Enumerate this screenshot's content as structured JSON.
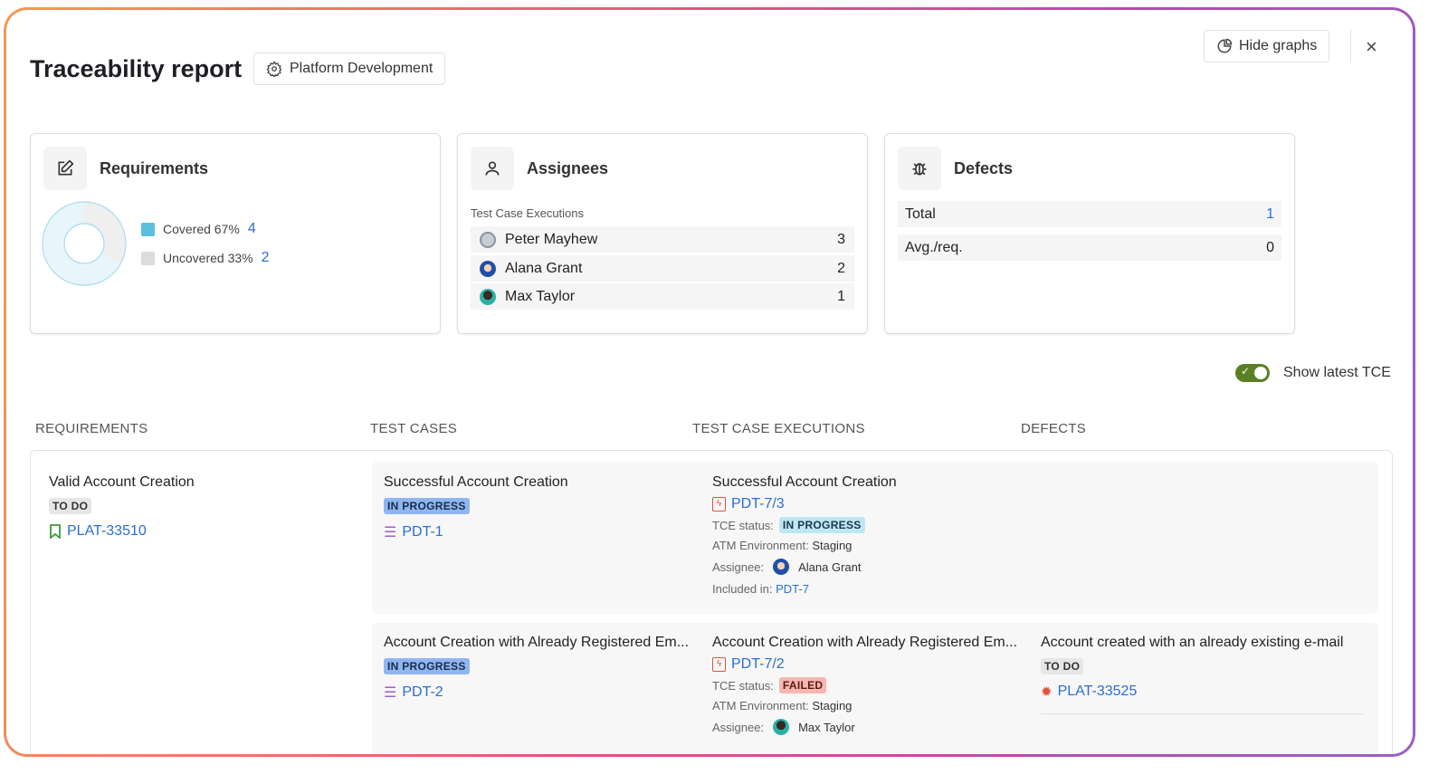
{
  "header": {
    "title": "Traceability report",
    "project": "Platform Development",
    "hide_graphs": "Hide graphs",
    "close": "×"
  },
  "requirements_card": {
    "title": "Requirements",
    "covered_label": "Covered 67%",
    "covered_count": "4",
    "uncovered_label": "Uncovered 33%",
    "uncovered_count": "2",
    "covered_pct": 67,
    "colors": {
      "covered": "#5bc0de",
      "uncovered": "#dcdcdc"
    }
  },
  "assignees_card": {
    "title": "Assignees",
    "subtitle": "Test Case Executions",
    "rows": [
      {
        "name": "Peter Mayhew",
        "count": "3"
      },
      {
        "name": "Alana Grant",
        "count": "2"
      },
      {
        "name": "Max Taylor",
        "count": "1"
      }
    ]
  },
  "defects_card": {
    "title": "Defects",
    "rows": [
      {
        "label": "Total",
        "value": "1"
      },
      {
        "label": "Avg./req.",
        "value": "0"
      }
    ]
  },
  "toggle": {
    "label": "Show latest TCE",
    "on": true,
    "check": "✓"
  },
  "columns": [
    "REQUIREMENTS",
    "TEST CASES",
    "TEST CASE EXECUTIONS",
    "DEFECTS"
  ],
  "requirement": {
    "title": "Valid Account Creation",
    "status": "TO DO",
    "key": "PLAT-33510"
  },
  "rows": [
    {
      "tc_title": "Successful Account Creation",
      "tc_status": "IN PROGRESS",
      "tc_key": "PDT-1",
      "tce_title": "Successful Account Creation",
      "tce_key": "PDT-7/3",
      "tce_status_label": "TCE status:",
      "tce_status": "IN PROGRESS",
      "env_label": "ATM Environment:",
      "env": "Staging",
      "assignee_label": "Assignee:",
      "assignee": "Alana Grant",
      "included_label": "Included in:",
      "included": "PDT-7"
    },
    {
      "tc_title": "Account Creation with Already Registered Em...",
      "tc_status": "IN PROGRESS",
      "tc_key": "PDT-2",
      "tce_title": "Account Creation with Already Registered Em...",
      "tce_key": "PDT-7/2",
      "tce_status_label": "TCE status:",
      "tce_status": "FAILED",
      "env_label": "ATM Environment:",
      "env": "Staging",
      "assignee_label": "Assignee:",
      "assignee": "Max Taylor",
      "defect_title": "Account created with an already existing e-mail",
      "defect_status": "TO DO",
      "defect_key": "PLAT-33525"
    }
  ]
}
